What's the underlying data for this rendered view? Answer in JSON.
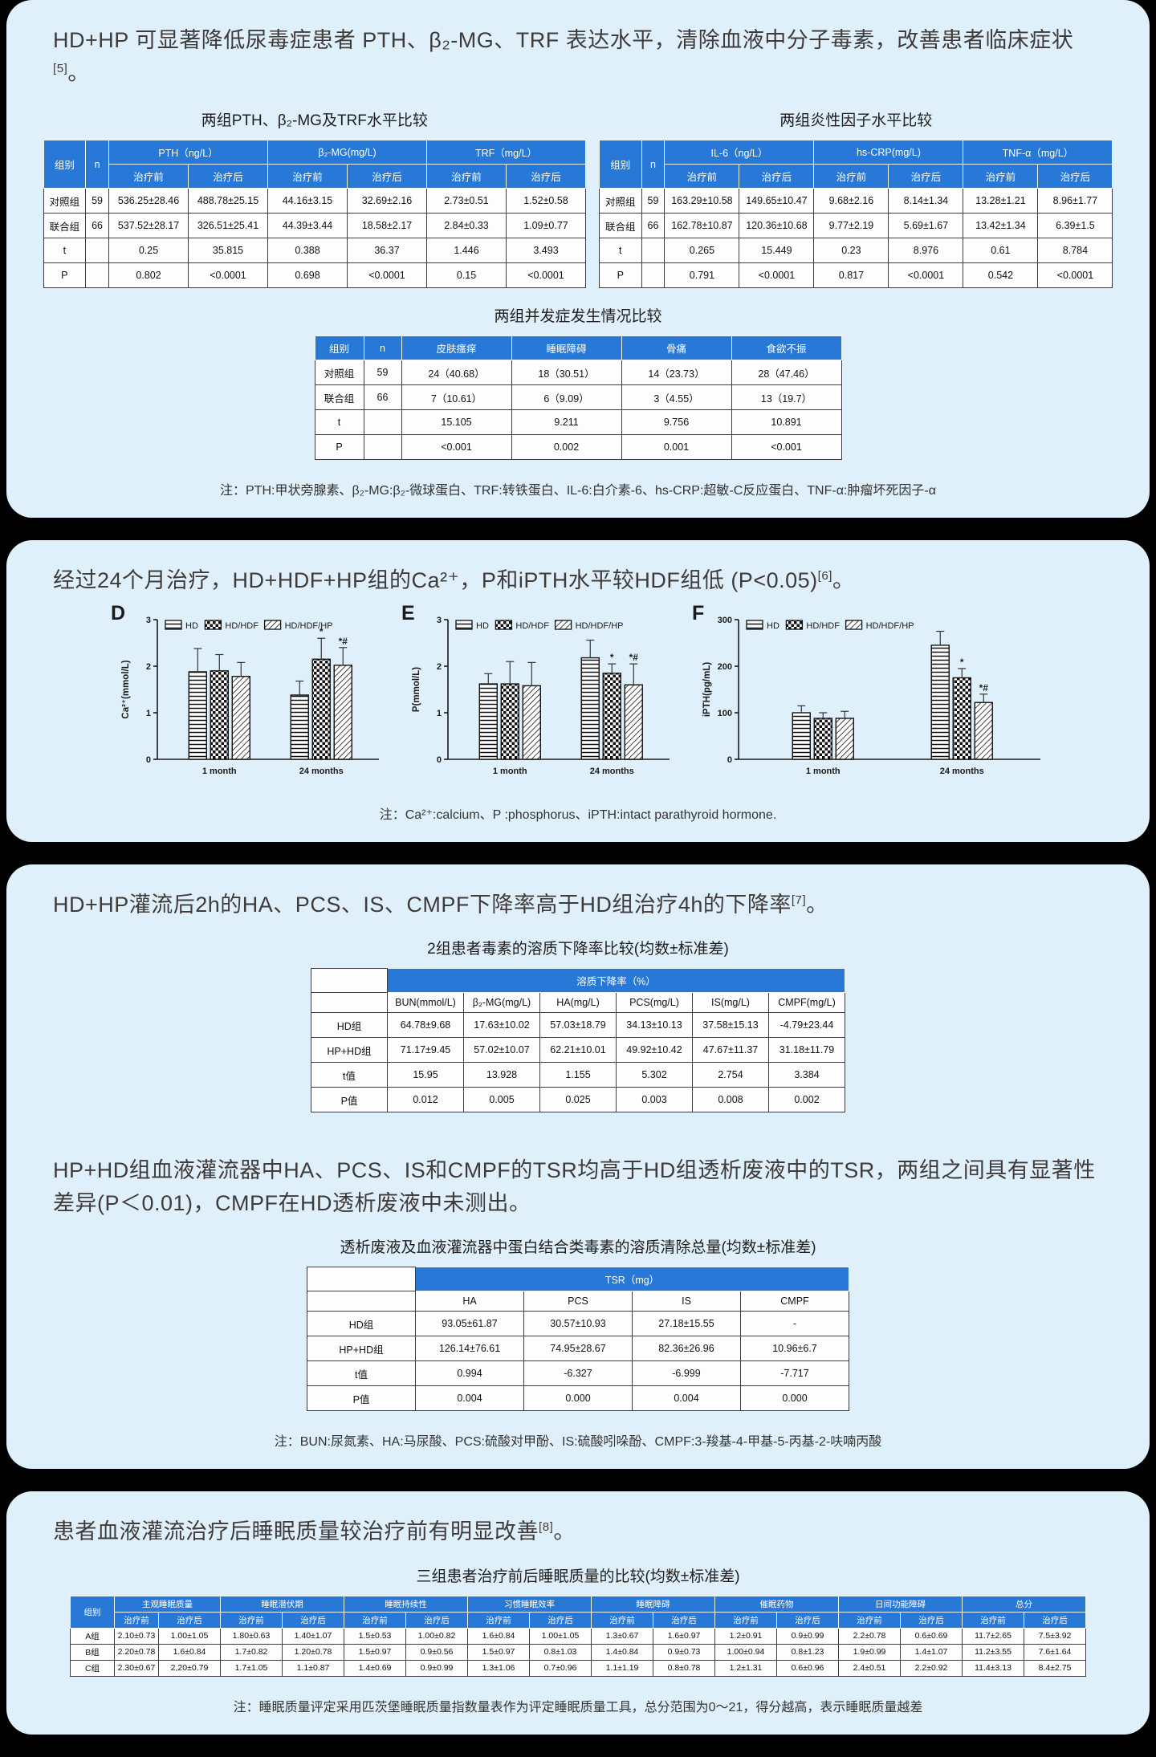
{
  "colors": {
    "page_bg": "#000000",
    "card_bg": "#dff0fb",
    "header_blue": "#2878d8",
    "table_border": "#3c3c3c",
    "text_dark": "#3f3b3a"
  },
  "sections": {
    "s1": {
      "text": "HD+HP 可显著降低尿毒症患者 PTH、β₂-MG、TRF 表达水平，清除血液中分子毒素，改善患者临床症状",
      "ref": "[5]",
      "tail": "。"
    },
    "s2": {
      "text": "经过24个月治疗，HD+HDF+HP组的Ca²⁺，P和iPTH水平较HDF组低 (P<0.05)",
      "ref": "[6]",
      "tail": "。"
    },
    "s3": {
      "text": "HD+HP灌流后2h的HA、PCS、IS、CMPF下降率高于HD组治疗4h的下降率",
      "ref": "[7]",
      "tail": "。"
    },
    "s3b": {
      "text": "HP+HD组血液灌流器中HA、PCS、IS和CMPF的TSR均高于HD组透析废液中的TSR，两组之间具有显著性差异(P＜0.01)，CMPF在HD透析废液中未测出。",
      "ref": "",
      "tail": ""
    },
    "s4": {
      "text": "患者血液灌流治疗后睡眠质量较治疗前有明显改善",
      "ref": "[8]",
      "tail": "。"
    }
  },
  "notes": {
    "n1": "注：PTH:甲状旁腺素、β₂-MG:β₂-微球蛋白、TRF:转铁蛋白、IL-6:白介素-6、hs-CRP:超敏-C反应蛋白、TNF-α:肿瘤坏死因子-α",
    "n2": "注：Ca²⁺:calcium、P :phosphorus、iPTH:intact parathyroid hormone.",
    "n3": "注：BUN:尿氮素、HA:马尿酸、PCS:硫酸对甲酚、IS:硫酸吲哚酚、CMPF:3-羧基-4-甲基-5-丙基-2-呋喃丙酸",
    "n4": "注：睡眠质量评定采用匹茨堡睡眠质量指数量表作为评定睡眠质量工具，总分范围为0～21，得分越高，表示睡眠质量越差"
  },
  "tables": {
    "pth": {
      "title": "两组PTH、β₂-MG及TRF水平比较",
      "head": [
        [
          {
            "t": "组别",
            "rs": 2
          },
          {
            "t": "n",
            "rs": 2
          },
          {
            "t": "PTH（ng/L）",
            "cs": 2
          },
          {
            "t": "β₂-MG(mg/L)",
            "cs": 2
          },
          {
            "t": "TRF（mg/L）",
            "cs": 2
          }
        ],
        [
          {
            "t": "治疗前"
          },
          {
            "t": "治疗后"
          },
          {
            "t": "治疗前"
          },
          {
            "t": "治疗后"
          },
          {
            "t": "治疗前"
          },
          {
            "t": "治疗后"
          }
        ]
      ],
      "rows": [
        [
          "对照组",
          "59",
          "536.25±28.46",
          "488.78±25.15",
          "44.16±3.15",
          "32.69±2.16",
          "2.73±0.51",
          "1.52±0.58"
        ],
        [
          "联合组",
          "66",
          "537.52±28.17",
          "326.51±25.41",
          "44.39±3.44",
          "18.58±2.17",
          "2.84±0.33",
          "1.09±0.77"
        ],
        [
          "t",
          "",
          "0.25",
          "35.815",
          "0.388",
          "36.37",
          "1.446",
          "3.493"
        ],
        [
          "P",
          "",
          "0.802",
          "<0.0001",
          "0.698",
          "<0.0001",
          "0.15",
          "<0.0001"
        ]
      ]
    },
    "inflam": {
      "title": "两组炎性因子水平比较",
      "head": [
        [
          {
            "t": "组别",
            "rs": 2
          },
          {
            "t": "n",
            "rs": 2
          },
          {
            "t": "IL-6（ng/L）",
            "cs": 2
          },
          {
            "t": "hs-CRP(mg/L)",
            "cs": 2
          },
          {
            "t": "TNF-α（mg/L）",
            "cs": 2
          }
        ],
        [
          {
            "t": "治疗前"
          },
          {
            "t": "治疗后"
          },
          {
            "t": "治疗前"
          },
          {
            "t": "治疗后"
          },
          {
            "t": "治疗前"
          },
          {
            "t": "治疗后"
          }
        ]
      ],
      "rows": [
        [
          "对照组",
          "59",
          "163.29±10.58",
          "149.65±10.47",
          "9.68±2.16",
          "8.14±1.34",
          "13.28±1.21",
          "8.96±1.77"
        ],
        [
          "联合组",
          "66",
          "162.78±10.87",
          "120.36±10.68",
          "9.77±2.19",
          "5.69±1.67",
          "13.42±1.34",
          "6.39±1.5"
        ],
        [
          "t",
          "",
          "0.265",
          "15.449",
          "0.23",
          "8.976",
          "0.61",
          "8.784"
        ],
        [
          "P",
          "",
          "0.791",
          "<0.0001",
          "0.817",
          "<0.0001",
          "0.542",
          "<0.0001"
        ]
      ]
    },
    "comp": {
      "title": "两组并发症发生情况比较",
      "head": [
        [
          {
            "t": "组别"
          },
          {
            "t": "n"
          },
          {
            "t": "皮肤瘙痒"
          },
          {
            "t": "睡眠障碍"
          },
          {
            "t": "骨痛"
          },
          {
            "t": "食欲不振"
          }
        ]
      ],
      "rows": [
        [
          "对照组",
          "59",
          "24（40.68）",
          "18（30.51）",
          "14（23.73）",
          "28（47.46）"
        ],
        [
          "联合组",
          "66",
          "7（10.61）",
          "6（9.09）",
          "3（4.55）",
          "13（19.7）"
        ],
        [
          "t",
          "",
          "15.105",
          "9.211",
          "9.756",
          "10.891"
        ],
        [
          "P",
          "",
          "<0.001",
          "0.002",
          "0.001",
          "<0.001"
        ]
      ]
    },
    "solute": {
      "title": "2组患者毒素的溶质下降率比较(均数±标准差)",
      "head": [
        [
          {
            "t": "",
            "p": 1
          },
          {
            "t": "溶质下降率（%）",
            "cs": 6
          }
        ],
        [
          {
            "t": "",
            "p": 1
          },
          {
            "t": "BUN(mmol/L)",
            "p": 1
          },
          {
            "t": "β₂-MG(mg/L)",
            "p": 1
          },
          {
            "t": "HA(mg/L)",
            "p": 1
          },
          {
            "t": "PCS(mg/L)",
            "p": 1
          },
          {
            "t": "IS(mg/L)",
            "p": 1
          },
          {
            "t": "CMPF(mg/L)",
            "p": 1
          }
        ]
      ],
      "rows": [
        [
          "HD组",
          "64.78±9.68",
          "17.63±10.02",
          "57.03±18.79",
          "34.13±10.13",
          "37.58±15.13",
          "-4.79±23.44"
        ],
        [
          "HP+HD组",
          "71.17±9.45",
          "57.02±10.07",
          "62.21±10.01",
          "49.92±10.42",
          "47.67±11.37",
          "31.18±11.79"
        ],
        [
          "t值",
          "15.95",
          "13.928",
          "1.155",
          "5.302",
          "2.754",
          "3.384"
        ],
        [
          "P值",
          "0.012",
          "0.005",
          "0.025",
          "0.003",
          "0.008",
          "0.002"
        ]
      ]
    },
    "tsr": {
      "title": "透析废液及血液灌流器中蛋白结合类毒素的溶质清除总量(均数±标准差)",
      "head": [
        [
          {
            "t": "",
            "p": 1
          },
          {
            "t": "TSR（mg）",
            "cs": 4
          }
        ],
        [
          {
            "t": "",
            "p": 1
          },
          {
            "t": "HA",
            "p": 1
          },
          {
            "t": "PCS",
            "p": 1
          },
          {
            "t": "IS",
            "p": 1
          },
          {
            "t": "CMPF",
            "p": 1
          }
        ]
      ],
      "rows": [
        [
          "HD组",
          "93.05±61.87",
          "30.57±10.93",
          "27.18±15.55",
          "-"
        ],
        [
          "HP+HD组",
          "126.14±76.61",
          "74.95±28.67",
          "82.36±26.96",
          "10.96±6.7"
        ],
        [
          "t值",
          "0.994",
          "-6.327",
          "-6.999",
          "-7.717"
        ],
        [
          "P值",
          "0.004",
          "0.000",
          "0.004",
          "0.000"
        ]
      ]
    },
    "sleep": {
      "title": "三组患者治疗前后睡眠质量的比较(均数±标准差)",
      "head": [
        [
          {
            "t": "组别",
            "rs": 2
          },
          {
            "t": "主观睡眠质量",
            "cs": 2
          },
          {
            "t": "睡眠潜伏期",
            "cs": 2
          },
          {
            "t": "睡眠持续性",
            "cs": 2
          },
          {
            "t": "习惯睡眠效率",
            "cs": 2
          },
          {
            "t": "睡眠障碍",
            "cs": 2
          },
          {
            "t": "催眠药物",
            "cs": 2
          },
          {
            "t": "日间功能障碍",
            "cs": 2
          },
          {
            "t": "总分",
            "cs": 2
          }
        ],
        [
          {
            "t": "治疗前"
          },
          {
            "t": "治疗后"
          },
          {
            "t": "治疗前"
          },
          {
            "t": "治疗后"
          },
          {
            "t": "治疗前"
          },
          {
            "t": "治疗后"
          },
          {
            "t": "治疗前"
          },
          {
            "t": "治疗后"
          },
          {
            "t": "治疗前"
          },
          {
            "t": "治疗后"
          },
          {
            "t": "治疗前"
          },
          {
            "t": "治疗后"
          },
          {
            "t": "治疗前"
          },
          {
            "t": "治疗后"
          },
          {
            "t": "治疗前"
          },
          {
            "t": "治疗后"
          }
        ]
      ],
      "rows": [
        [
          "A组",
          "2.10±0.73",
          "1.00±1.05",
          "1.80±0.63",
          "1.40±1.07",
          "1.5±0.53",
          "1.00±0.82",
          "1.6±0.84",
          "1.00±1.05",
          "1.3±0.67",
          "1.6±0.97",
          "1.2±0.91",
          "0.9±0.99",
          "2.2±0.78",
          "0.6±0.69",
          "11.7±2.65",
          "7.5±3.92"
        ],
        [
          "B组",
          "2.20±0.78",
          "1.6±0.84",
          "1.7±0.82",
          "1.20±0.78",
          "1.5±0.97",
          "0.9±0.56",
          "1.5±0.97",
          "0.8±1.03",
          "1.4±0.84",
          "0.9±0.73",
          "1.00±0.94",
          "0.8±1.23",
          "1.9±0.99",
          "1.4±1.07",
          "11.2±3.55",
          "7.6±1.64"
        ],
        [
          "C组",
          "2.30±0.67",
          "2,20±0.79",
          "1.7±1.05",
          "1.1±0.87",
          "1.4±0.69",
          "0.9±0.99",
          "1.3±1.06",
          "0.7±0.96",
          "1.1±1.19",
          "0.8±0.78",
          "1.2±1.31",
          "0.6±0.96",
          "2.4±0.51",
          "2.2±0.92",
          "11.4±3.13",
          "8.4±2.75"
        ]
      ]
    }
  },
  "chart_data": [
    {
      "id": "D",
      "type": "bar",
      "ylabel": "Ca²⁺(mmol/L)",
      "ylim": [
        0,
        3
      ],
      "yticks": [
        0,
        1,
        2,
        3
      ],
      "categories": [
        "1 month",
        "24 months"
      ],
      "legend_position": "top",
      "grid": false,
      "series": [
        {
          "name": "HD",
          "pattern": "hlines",
          "values": [
            1.88,
            1.38
          ],
          "errors": [
            0.5,
            0.3
          ],
          "annotations": [
            "",
            ""
          ]
        },
        {
          "name": "HD/HDF",
          "pattern": "checker",
          "values": [
            1.9,
            2.15
          ],
          "errors": [
            0.35,
            0.45
          ],
          "annotations": [
            "",
            "*"
          ]
        },
        {
          "name": "HD/HDF/HP",
          "pattern": "diag",
          "values": [
            1.78,
            2.02
          ],
          "errors": [
            0.3,
            0.38
          ],
          "annotations": [
            "",
            "*#"
          ]
        }
      ]
    },
    {
      "id": "E",
      "type": "bar",
      "ylabel": "P(mmol/L)",
      "ylim": [
        0,
        3
      ],
      "yticks": [
        0,
        1,
        2,
        3
      ],
      "categories": [
        "1 month",
        "24 months"
      ],
      "legend_position": "top",
      "grid": false,
      "series": [
        {
          "name": "HD",
          "pattern": "hlines",
          "values": [
            1.62,
            2.18
          ],
          "errors": [
            0.22,
            0.38
          ],
          "annotations": [
            "",
            ""
          ]
        },
        {
          "name": "HD/HDF",
          "pattern": "checker",
          "values": [
            1.62,
            1.85
          ],
          "errors": [
            0.48,
            0.2
          ],
          "annotations": [
            "",
            "*"
          ]
        },
        {
          "name": "HD/HDF/HP",
          "pattern": "diag",
          "values": [
            1.58,
            1.6
          ],
          "errors": [
            0.5,
            0.45
          ],
          "annotations": [
            "",
            "*#"
          ]
        }
      ]
    },
    {
      "id": "F",
      "type": "bar",
      "ylabel": "iPTH(pg/mL)",
      "ylim": [
        0,
        300
      ],
      "yticks": [
        0,
        100,
        200,
        300
      ],
      "categories": [
        "1 month",
        "24 months"
      ],
      "legend_position": "top",
      "grid": false,
      "series": [
        {
          "name": "HD",
          "pattern": "hlines",
          "values": [
            100,
            245
          ],
          "errors": [
            15,
            30
          ],
          "annotations": [
            "",
            ""
          ]
        },
        {
          "name": "HD/HDF",
          "pattern": "checker",
          "values": [
            88,
            175
          ],
          "errors": [
            12,
            20
          ],
          "annotations": [
            "",
            "*"
          ]
        },
        {
          "name": "HD/HDF/HP",
          "pattern": "diag",
          "values": [
            88,
            122
          ],
          "errors": [
            15,
            18
          ],
          "annotations": [
            "",
            "*#"
          ]
        }
      ]
    }
  ]
}
